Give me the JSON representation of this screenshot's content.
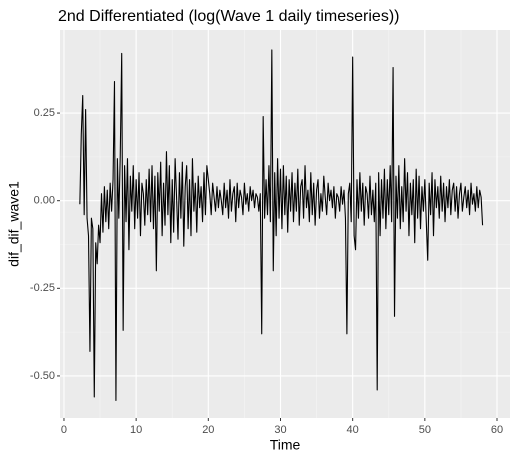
{
  "chart_data": {
    "type": "line",
    "title": "2nd Differentiated (log(Wave 1 daily timeseries))",
    "xlabel": "Time",
    "ylabel": "dif_dif_wave1",
    "xlim": [
      -0.55,
      61.8
    ],
    "ylim": [
      -0.62,
      0.487
    ],
    "xticks": [
      0,
      10,
      20,
      30,
      40,
      50,
      60
    ],
    "yticks": [
      {
        "value": -0.5,
        "label": "-0.50"
      },
      -0.25,
      {
        "value": 0,
        "label": "0.00"
      },
      0.25
    ],
    "grid": true,
    "series": [
      {
        "color": "#000000",
        "x": [
          2.2,
          2.4,
          2.6,
          2.8,
          3,
          3.2,
          3.4,
          3.6,
          3.8,
          4,
          4.2,
          4.4,
          4.6,
          4.8,
          5,
          5.2,
          5.4,
          5.6,
          5.8,
          6,
          6.2,
          6.4,
          6.6,
          6.8,
          7,
          7.2,
          7.4,
          7.6,
          7.8,
          8,
          8.2,
          8.4,
          8.6,
          8.8,
          9,
          9.2,
          9.4,
          9.6,
          9.8,
          10,
          10.2,
          10.4,
          10.6,
          10.8,
          11,
          11.2,
          11.4,
          11.6,
          11.8,
          12,
          12.2,
          12.4,
          12.6,
          12.8,
          13,
          13.2,
          13.4,
          13.6,
          13.8,
          14,
          14.2,
          14.4,
          14.6,
          14.8,
          15,
          15.2,
          15.4,
          15.6,
          15.8,
          16,
          16.2,
          16.4,
          16.6,
          16.8,
          17,
          17.2,
          17.4,
          17.6,
          17.8,
          18,
          18.2,
          18.4,
          18.6,
          18.8,
          19,
          19.2,
          19.4,
          19.6,
          19.8,
          20,
          20.2,
          20.4,
          20.6,
          20.8,
          21,
          21.2,
          21.4,
          21.6,
          21.8,
          22,
          22.2,
          22.4,
          22.6,
          22.8,
          23,
          23.2,
          23.4,
          23.6,
          23.8,
          24,
          24.2,
          24.4,
          24.6,
          24.8,
          25,
          25.2,
          25.4,
          25.6,
          25.8,
          26,
          26.2,
          26.4,
          26.6,
          26.8,
          27,
          27.2,
          27.4,
          27.6,
          27.8,
          28,
          28.2,
          28.4,
          28.6,
          28.8,
          29,
          29.2,
          29.4,
          29.6,
          29.8,
          30,
          30.2,
          30.4,
          30.6,
          30.8,
          31,
          31.2,
          31.4,
          31.6,
          31.8,
          32,
          32.2,
          32.4,
          32.6,
          32.8,
          33,
          33.2,
          33.4,
          33.6,
          33.8,
          34,
          34.2,
          34.4,
          34.6,
          34.8,
          35,
          35.2,
          35.4,
          35.6,
          35.8,
          36,
          36.2,
          36.4,
          36.6,
          36.8,
          37,
          37.2,
          37.4,
          37.6,
          37.8,
          38,
          38.2,
          38.4,
          38.6,
          38.8,
          39,
          39.2,
          39.4,
          39.6,
          39.8,
          40,
          40.2,
          40.4,
          40.6,
          40.8,
          41,
          41.2,
          41.4,
          41.6,
          41.8,
          42,
          42.2,
          42.4,
          42.6,
          42.8,
          43,
          43.2,
          43.4,
          43.6,
          43.8,
          44,
          44.2,
          44.4,
          44.6,
          44.8,
          45,
          45.2,
          45.4,
          45.6,
          45.8,
          46,
          46.2,
          46.4,
          46.6,
          46.8,
          47,
          47.2,
          47.4,
          47.6,
          47.8,
          48,
          48.2,
          48.4,
          48.6,
          48.8,
          49,
          49.2,
          49.4,
          49.6,
          49.8,
          50,
          50.2,
          50.4,
          50.6,
          50.8,
          51,
          51.2,
          51.4,
          51.6,
          51.8,
          52,
          52.2,
          52.4,
          52.6,
          52.8,
          53,
          53.2,
          53.4,
          53.6,
          53.8,
          54,
          54.2,
          54.4,
          54.6,
          54.8,
          55,
          55.2,
          55.4,
          55.6,
          55.8,
          56,
          56.2,
          56.4,
          56.6,
          56.8,
          57,
          57.2,
          57.4,
          57.6,
          57.8,
          58
        ],
        "values": [
          -0.01,
          0.19,
          0.3,
          -0.04,
          0.26,
          -0.05,
          -0.1,
          -0.43,
          -0.05,
          -0.08,
          -0.56,
          -0.12,
          -0.18,
          -0.07,
          -0.12,
          0.02,
          -0.09,
          0.04,
          -0.06,
          0.03,
          -0.08,
          0.05,
          -0.03,
          0.06,
          0.34,
          -0.57,
          0.12,
          -0.05,
          0.13,
          0.42,
          -0.37,
          0.1,
          -0.06,
          0.12,
          -0.14,
          0.07,
          -0.03,
          0.1,
          -0.08,
          0.06,
          -0.05,
          0.08,
          -0.1,
          0.05,
          0.02,
          -0.07,
          0.06,
          -0.04,
          0.09,
          -0.06,
          0.1,
          -0.08,
          0.07,
          -0.2,
          0.08,
          -0.03,
          0.11,
          -0.1,
          0.05,
          -0.07,
          0.14,
          -0.04,
          0.1,
          -0.12,
          0.06,
          -0.09,
          0.12,
          0.01,
          -0.11,
          0.08,
          -0.05,
          0.11,
          -0.13,
          0.04,
          0.1,
          -0.08,
          0.06,
          -0.1,
          0.12,
          -0.03,
          0.05,
          -0.09,
          0.07,
          -0.02,
          0.04,
          -0.06,
          0.08,
          -0.04,
          0.1,
          0.06,
          0.02,
          -0.04,
          0.05,
          0.01,
          -0.03,
          0.04,
          -0.02,
          0.03,
          0.0,
          -0.04,
          0.05,
          -0.02,
          0.03,
          -0.05,
          0.06,
          -0.03,
          0.02,
          0.04,
          -0.06,
          0.05,
          -0.02,
          0.03,
          0.01,
          -0.04,
          0.05,
          -0.01,
          0.02,
          -0.03,
          0.04,
          0.0,
          0.03,
          -0.02,
          0.02,
          0.01,
          -0.03,
          0.02,
          -0.38,
          0.24,
          -0.05,
          0.06,
          -0.04,
          0.1,
          -0.06,
          0.43,
          -0.2,
          0.08,
          -0.1,
          0.12,
          -0.05,
          0.09,
          -0.08,
          0.1,
          -0.04,
          0.07,
          -0.09,
          0.06,
          -0.03,
          0.08,
          -0.06,
          0.05,
          -0.03,
          0.09,
          -0.07,
          0.04,
          0.06,
          -0.05,
          0.1,
          -0.02,
          0.03,
          -0.06,
          0.08,
          -0.04,
          0.05,
          -0.07,
          0.03,
          0.06,
          -0.05,
          0.02,
          -0.03,
          0.07,
          0.01,
          -0.04,
          0.05,
          0.0,
          0.03,
          -0.02,
          0.04,
          -0.05,
          0.02,
          0.01,
          -0.03,
          0.04,
          -0.01,
          0.03,
          -0.05,
          -0.38,
          0.02,
          0.05,
          -0.06,
          0.41,
          -0.1,
          -0.14,
          0.06,
          -0.05,
          0.08,
          -0.03,
          0.05,
          -0.07,
          0.04,
          0.02,
          -0.05,
          0.07,
          -0.04,
          0.03,
          -0.06,
          0.05,
          -0.54,
          0.08,
          -0.1,
          0.06,
          -0.05,
          0.09,
          -0.08,
          0.06,
          -0.04,
          0.1,
          -0.06,
          0.38,
          -0.33,
          0.07,
          -0.05,
          0.1,
          -0.08,
          0.04,
          -0.06,
          0.12,
          -0.03,
          0.08,
          -0.1,
          0.05,
          -0.04,
          0.06,
          -0.12,
          0.09,
          -0.05,
          0.07,
          -0.08,
          0.04,
          -0.03,
          0.06,
          -0.06,
          -0.17,
          0.05,
          -0.04,
          0.08,
          -0.1,
          0.06,
          -0.02,
          0.04,
          -0.05,
          0.07,
          -0.03,
          0.05,
          -0.06,
          0.04,
          -0.02,
          0.06,
          -0.04,
          0.03,
          0.05,
          -0.03,
          0.04,
          -0.05,
          0.02,
          0.05,
          -0.03,
          0.01,
          0.04,
          -0.02,
          0.03,
          -0.04,
          0.05,
          -0.01,
          0.02,
          -0.03,
          0.04,
          -0.02,
          0.03,
          0.01,
          -0.07
        ]
      }
    ]
  }
}
